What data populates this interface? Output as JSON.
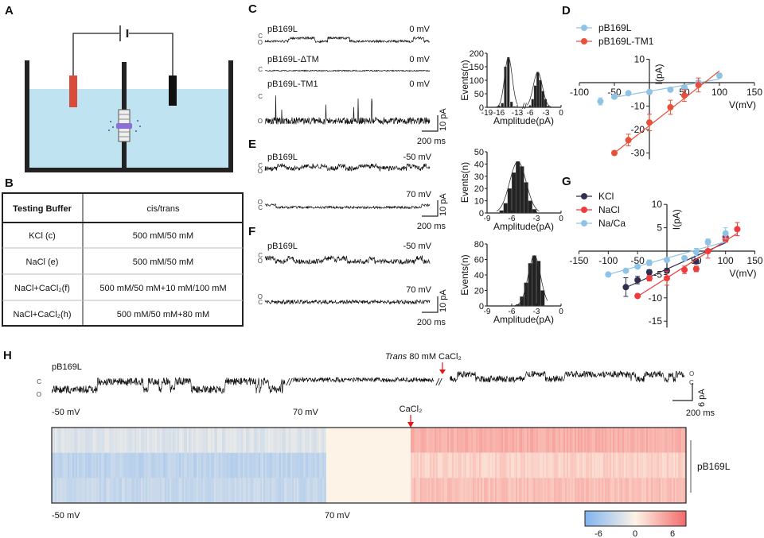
{
  "panels": {
    "A": "A",
    "B": "B",
    "C": "C",
    "D": "D",
    "E": "E",
    "F": "F",
    "G": "G",
    "H": "H"
  },
  "colors": {
    "water": "#bfe3f0",
    "cis_electrode": "#d94b3a",
    "trans_electrode": "#111111",
    "membrane_protein": "#8a6fd6",
    "blue_series": "#8ec3e6",
    "red_series": "#e8503a",
    "kcl": "#2f2f4f",
    "nacl": "#ef3b3b",
    "naca": "#8ec3e6"
  },
  "table": {
    "headers": [
      "Testing Buffer",
      "cis/trans"
    ],
    "rows": [
      [
        "KCl (c)",
        "500 mM/50 mM"
      ],
      [
        "NaCl (e)",
        "500 mM/50 mM"
      ],
      [
        "NaCl+CaCl₂(f)",
        "500 mM/50 mM+10 mM/100 mM"
      ],
      [
        "NaCl+CaCl₂(h)",
        "500 mM/50 mM+80 mM"
      ]
    ]
  },
  "traces": {
    "C": [
      {
        "name": "pB169L",
        "voltage": "0 mV",
        "levels": [
          "C",
          "O"
        ]
      },
      {
        "name": "pB169L-ΔTM",
        "voltage": "0 mV",
        "levels": [
          "C"
        ]
      },
      {
        "name": "pB169L-TM1",
        "voltage": "0 mV",
        "levels": [
          "C",
          "O"
        ]
      }
    ],
    "E": [
      {
        "name": "pB169L",
        "voltage": "-50 mV",
        "levels": [
          "C",
          "O"
        ]
      },
      {
        "name": "",
        "voltage": "70 mV",
        "levels": [
          "O",
          "C"
        ]
      }
    ],
    "F": [
      {
        "name": "pB169L",
        "voltage": "-50 mV",
        "levels": [
          "C",
          "O"
        ]
      },
      {
        "name": "",
        "voltage": "70 mV",
        "levels": [
          "O",
          "C"
        ]
      }
    ],
    "scale_current": "10 pA",
    "scale_time": "200 ms"
  },
  "H": {
    "name": "pB169L",
    "left_levels": [
      "C",
      "O"
    ],
    "right_levels": [
      "O",
      "C"
    ],
    "annotation_trans": "Trans",
    "annotation_rest": " 80 mM CaCl₂",
    "annotation_cacl2": "CaCl₂",
    "label_neg50": "-50 mV",
    "label_70": "70 mV",
    "scale_current": "6 pA",
    "scale_time": "200 ms",
    "heatmap_label": "pB169L",
    "colorbar_ticks": [
      "-6",
      "0",
      "6"
    ]
  },
  "chart_data": [
    {
      "id": "C-hist",
      "type": "bar",
      "ylabel": "Events(n)",
      "xlabel": "Amplitude(pA)",
      "ylim": [
        0,
        200
      ],
      "yticks": [
        "0",
        "50",
        "100",
        "150",
        "200"
      ],
      "xticks": [
        "-19",
        "-16",
        "-13",
        "-6",
        "-3",
        "0"
      ],
      "x_axis_break": true,
      "series": [
        {
          "x": [
            -17,
            -16.5,
            -16,
            -15.5,
            -15,
            -14.5
          ],
          "values": [
            5,
            15,
            150,
            185,
            20,
            3
          ]
        },
        {
          "x": [
            -6,
            -5.5,
            -5,
            -4.5,
            -4,
            -3.5,
            -3,
            -2.5
          ],
          "values": [
            5,
            30,
            80,
            130,
            100,
            60,
            30,
            5
          ]
        }
      ]
    },
    {
      "id": "E-hist",
      "type": "bar",
      "ylabel": "Events(n)",
      "xlabel": "Amplitude(pA)",
      "ylim": [
        0,
        50
      ],
      "xlim": [
        -9,
        0
      ],
      "yticks": [
        "0",
        "10",
        "20",
        "30",
        "40",
        "50"
      ],
      "xticks": [
        "-9",
        "-6",
        "-3",
        "0"
      ],
      "x": [
        -7.25,
        -6.75,
        -6.25,
        -5.75,
        -5.25,
        -4.75,
        -4.25,
        -3.75,
        -3.25
      ],
      "values": [
        2,
        8,
        20,
        33,
        42,
        38,
        25,
        10,
        3
      ]
    },
    {
      "id": "F-hist",
      "type": "bar",
      "ylabel": "Events(n)",
      "xlabel": "Amplitude(pA)",
      "ylim": [
        0,
        80
      ],
      "xlim": [
        -9,
        0
      ],
      "yticks": [
        "0",
        "20",
        "40",
        "60",
        "80"
      ],
      "xticks": [
        "-9",
        "-6",
        "-3",
        "0"
      ],
      "x": [
        -5.25,
        -4.75,
        -4.25,
        -3.75,
        -3.25,
        -2.75,
        -2.25
      ],
      "values": [
        2,
        12,
        30,
        55,
        65,
        58,
        20
      ]
    },
    {
      "id": "D",
      "type": "scatter",
      "xlabel": "V(mV)",
      "ylabel": "I(pA)",
      "xlim": [
        -100,
        150
      ],
      "ylim": [
        -30,
        10
      ],
      "xticks": [
        "-100",
        "-50",
        "50",
        "100",
        "150"
      ],
      "yticks": [
        "10",
        "-10",
        "-20",
        "-30"
      ],
      "legend": "top-left",
      "series": [
        {
          "name": "pB169L",
          "color": "#8ec3e6",
          "x": [
            -70,
            -50,
            -30,
            0,
            30,
            50,
            70,
            100
          ],
          "y": [
            -8,
            -6,
            -4.5,
            -4,
            -3,
            -2,
            0,
            3
          ],
          "err": [
            1.5,
            0.8,
            0.3,
            0.3,
            0.3,
            0.5,
            0.8,
            1
          ],
          "fit": [
            [
              -55,
              -6.5
            ],
            [
              100,
              1.5
            ]
          ]
        },
        {
          "name": "pB169L-TM1",
          "color": "#e8503a",
          "x": [
            -50,
            -30,
            0,
            30,
            50,
            70
          ],
          "y": [
            -30,
            -24.5,
            -17,
            -10.5,
            -5.5,
            -1
          ],
          "err": [
            0.5,
            2.5,
            3.5,
            3,
            2.5,
            3
          ],
          "fit": [
            [
              -50,
              -30
            ],
            [
              100,
              5
            ]
          ]
        }
      ]
    },
    {
      "id": "G",
      "type": "scatter",
      "xlabel": "V(mV)",
      "ylabel": "I(pA)",
      "xlim": [
        -150,
        150
      ],
      "ylim": [
        -15,
        10
      ],
      "xticks": [
        "-150",
        "-100",
        "-50",
        "50",
        "100",
        "150"
      ],
      "yticks": [
        "10",
        "5",
        "-5",
        "-10",
        "-15"
      ],
      "legend": "top-left",
      "series": [
        {
          "name": "KCl",
          "color": "#2f2f4f",
          "x": [
            -70,
            -50,
            -30,
            0,
            50,
            100
          ],
          "y": [
            -7.7,
            -6.2,
            -4.5,
            -4.2,
            -2.2,
            3
          ],
          "err": [
            2,
            0.8,
            0.5,
            0.5,
            0.5,
            0.8
          ],
          "fit": [
            [
              -70,
              -7.8
            ],
            [
              100,
              1.8
            ]
          ]
        },
        {
          "name": "NaCl",
          "color": "#ef3b3b",
          "x": [
            -50,
            -30,
            0,
            30,
            50,
            70,
            100,
            120
          ],
          "y": [
            -9.6,
            -5.8,
            -5.8,
            -4,
            -3.8,
            0,
            2.5,
            4.7
          ],
          "err": [
            0.3,
            0.6,
            1.5,
            0.8,
            0.6,
            1.5,
            0.6,
            1.4
          ],
          "fit": [
            [
              -50,
              -9.7
            ],
            [
              120,
              3.8
            ]
          ]
        },
        {
          "name": "Na/Ca",
          "color": "#8ec3e6",
          "x": [
            -100,
            -70,
            -50,
            -30,
            0,
            30,
            50,
            70,
            100
          ],
          "y": [
            -5,
            -4.2,
            -3.3,
            -2.5,
            -1.9,
            -1.5,
            -0.2,
            2,
            3.8
          ],
          "err": [
            0.3,
            0.3,
            0.3,
            0.6,
            0.3,
            0.3,
            0.8,
            0.6,
            1.2
          ],
          "fit": [
            [
              -100,
              -5
            ],
            [
              100,
              2
            ]
          ]
        }
      ]
    },
    {
      "id": "H-heatmap",
      "type": "heatmap",
      "colorbar": {
        "min": -8,
        "max": 8,
        "ticks": [
          -6,
          0,
          6
        ],
        "low_color": "#7fb4f0",
        "mid_color": "#fdf3e6",
        "high_color": "#f26b6b"
      },
      "segments": [
        {
          "label": "-50 mV",
          "mean": [
            -2,
            -4,
            -3.5
          ]
        },
        {
          "label": "70 mV",
          "mean": [
            0,
            0,
            0
          ]
        },
        {
          "label": "CaCl₂",
          "mean": [
            4,
            2,
            3
          ]
        }
      ]
    }
  ]
}
